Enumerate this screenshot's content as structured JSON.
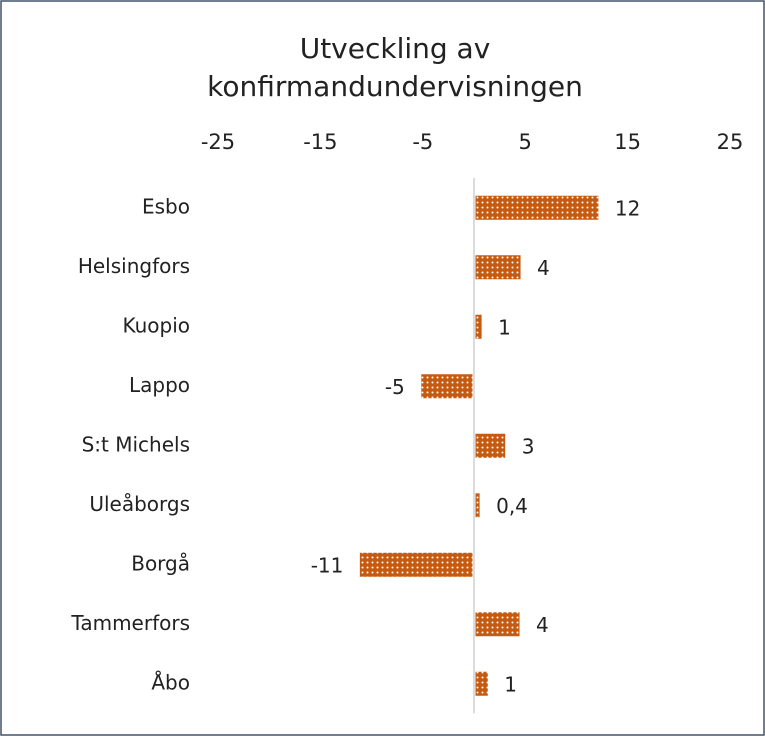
{
  "chart_data": {
    "type": "bar",
    "orientation": "horizontal",
    "title": [
      "Utveckling av",
      "konfirmandundervisningen"
    ],
    "categories": [
      "Esbo",
      "Helsingfors",
      "Kuopio",
      "Lappo",
      "S:t Michels",
      "Uleåborgs",
      "Borgå",
      "Tammerfors",
      "Åbo"
    ],
    "values": [
      12,
      4.4,
      0.6,
      -5,
      2.9,
      0.4,
      -11,
      4.3,
      1.2
    ],
    "value_labels": [
      "12",
      "4",
      "1",
      "-5",
      "3",
      "0,4",
      "-11",
      "4",
      "1"
    ],
    "color": "#c55a11",
    "xlim": [
      -25,
      25
    ],
    "xticks": [
      -25,
      -15,
      -5,
      5,
      15,
      25
    ],
    "grid": false
  }
}
